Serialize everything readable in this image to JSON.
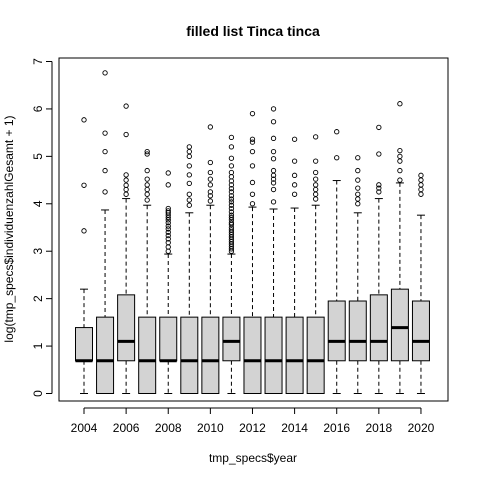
{
  "chart_data": {
    "type": "boxplot",
    "title": "filled list Tinca tinca",
    "xlabel": "tmp_specs$year",
    "ylabel": "log(tmp_specs$individuenzahlGesamt + 1)",
    "ylim": [
      0,
      7
    ],
    "yticks": [
      0,
      1,
      2,
      3,
      4,
      5,
      6,
      7
    ],
    "xtick_labels": [
      "2004",
      "2006",
      "2008",
      "2010",
      "2012",
      "2014",
      "2016",
      "2018",
      "2020"
    ],
    "box_fill": "#d3d3d3",
    "grid": false,
    "years": [
      2004,
      2005,
      2006,
      2007,
      2008,
      2009,
      2010,
      2011,
      2012,
      2013,
      2014,
      2015,
      2016,
      2017,
      2018,
      2019,
      2020
    ],
    "boxes": [
      {
        "year": 2004,
        "whisker_low": 0,
        "q1": 0.69,
        "median": 0.69,
        "q3": 1.39,
        "whisker_high": 2.2,
        "outliers": [
          3.43,
          4.39,
          5.77
        ]
      },
      {
        "year": 2005,
        "whisker_low": 0,
        "q1": 0,
        "median": 0.69,
        "q3": 1.61,
        "whisker_high": 3.87,
        "outliers": [
          4.25,
          4.7,
          5.1,
          5.49,
          6.76
        ]
      },
      {
        "year": 2006,
        "whisker_low": 0,
        "q1": 0.69,
        "median": 1.1,
        "q3": 2.08,
        "whisker_high": 4.11,
        "outliers": [
          4.2,
          4.3,
          4.39,
          4.5,
          4.61,
          5.46,
          6.06
        ]
      },
      {
        "year": 2007,
        "whisker_low": 0,
        "q1": 0,
        "median": 0.69,
        "q3": 1.61,
        "whisker_high": 3.97,
        "outliers": [
          4.08,
          4.2,
          4.3,
          4.4,
          4.52,
          4.7,
          5.05,
          5.1
        ]
      },
      {
        "year": 2008,
        "whisker_low": 0,
        "q1": 0.69,
        "median": 0.69,
        "q3": 1.61,
        "whisker_high": 2.94,
        "outliers": [
          3.0,
          3.09,
          3.18,
          3.26,
          3.33,
          3.4,
          3.47,
          3.53,
          3.6,
          3.66,
          3.71,
          3.76,
          3.81,
          3.85,
          3.9,
          4.4,
          4.65
        ]
      },
      {
        "year": 2009,
        "whisker_low": 0,
        "q1": 0,
        "median": 0.69,
        "q3": 1.61,
        "whisker_high": 3.81,
        "outliers": [
          3.97,
          4.08,
          4.2,
          4.43,
          4.61,
          4.8,
          5.0,
          5.1,
          5.2
        ]
      },
      {
        "year": 2010,
        "whisker_low": 0,
        "q1": 0,
        "median": 0.69,
        "q3": 1.61,
        "whisker_high": 3.97,
        "outliers": [
          4.06,
          4.17,
          4.25,
          4.4,
          4.52,
          4.66,
          4.87,
          5.62
        ]
      },
      {
        "year": 2011,
        "whisker_low": 0,
        "q1": 0.69,
        "median": 1.1,
        "q3": 1.61,
        "whisker_high": 2.94,
        "outliers": [
          3.0,
          3.05,
          3.1,
          3.15,
          3.2,
          3.25,
          3.3,
          3.35,
          3.4,
          3.45,
          3.5,
          3.56,
          3.6,
          3.66,
          3.71,
          3.76,
          3.83,
          3.9,
          3.97,
          4.04,
          4.1,
          4.17,
          4.25,
          4.32,
          4.4,
          4.48,
          4.57,
          4.66,
          4.8,
          4.96,
          5.2,
          5.4
        ]
      },
      {
        "year": 2012,
        "whisker_low": 0,
        "q1": 0,
        "median": 0.69,
        "q3": 1.61,
        "whisker_high": 3.93,
        "outliers": [
          4.0,
          4.2,
          4.45,
          4.8,
          5.1,
          5.3,
          5.36,
          5.9
        ]
      },
      {
        "year": 2013,
        "whisker_low": 0,
        "q1": 0,
        "median": 0.69,
        "q3": 1.61,
        "whisker_high": 3.89,
        "outliers": [
          4.04,
          4.3,
          4.44,
          4.52,
          4.6,
          4.7,
          4.95,
          5.1,
          5.38,
          5.73,
          6.0
        ]
      },
      {
        "year": 2014,
        "whisker_low": 0,
        "q1": 0,
        "median": 0.69,
        "q3": 1.61,
        "whisker_high": 3.91,
        "outliers": [
          4.2,
          4.4,
          4.6,
          4.9,
          5.36
        ]
      },
      {
        "year": 2015,
        "whisker_low": 0,
        "q1": 0,
        "median": 0.69,
        "q3": 1.61,
        "whisker_high": 3.97,
        "outliers": [
          4.1,
          4.2,
          4.3,
          4.4,
          4.52,
          4.66,
          4.9,
          5.41
        ]
      },
      {
        "year": 2016,
        "whisker_low": 0,
        "q1": 0.69,
        "median": 1.1,
        "q3": 1.95,
        "whisker_high": 4.49,
        "outliers": [
          4.97,
          5.52
        ]
      },
      {
        "year": 2017,
        "whisker_low": 0,
        "q1": 0.69,
        "median": 1.1,
        "q3": 1.95,
        "whisker_high": 3.81,
        "outliers": [
          4.0,
          4.1,
          4.2,
          4.33,
          4.5,
          4.7,
          4.97
        ]
      },
      {
        "year": 2018,
        "whisker_low": 0,
        "q1": 0.69,
        "median": 1.1,
        "q3": 2.08,
        "whisker_high": 4.11,
        "outliers": [
          4.25,
          4.33,
          4.4,
          5.05,
          5.61
        ]
      },
      {
        "year": 2019,
        "whisker_low": 0,
        "q1": 0.69,
        "median": 1.39,
        "q3": 2.2,
        "whisker_high": 4.44,
        "outliers": [
          4.5,
          4.7,
          4.9,
          5.0,
          5.12,
          6.11
        ]
      },
      {
        "year": 2020,
        "whisker_low": 0,
        "q1": 0.69,
        "median": 1.1,
        "q3": 1.95,
        "whisker_high": 3.76,
        "outliers": [
          4.2,
          4.3,
          4.4,
          4.5,
          4.6
        ]
      }
    ]
  }
}
